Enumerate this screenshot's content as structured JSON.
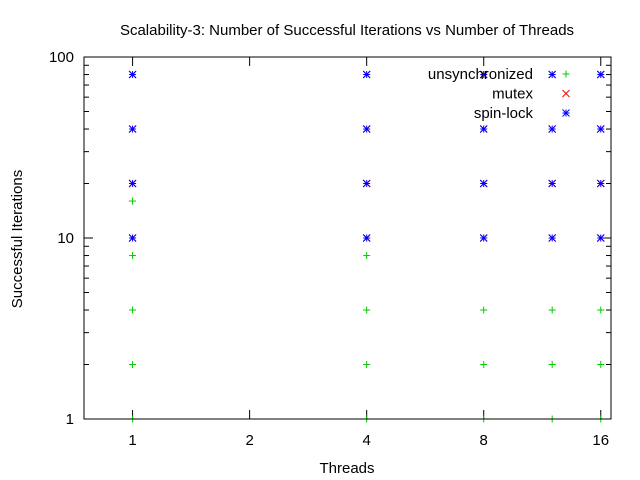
{
  "chart_data": {
    "type": "scatter",
    "title": "Scalability-3: Number of Successful Iterations vs Number of Threads",
    "xlabel": "Threads",
    "ylabel": "Successful Iterations",
    "x_scale": "log2",
    "y_scale": "log10",
    "xlim": [
      0.75,
      17
    ],
    "ylim": [
      1,
      100
    ],
    "x_ticks": [
      {
        "value": 1,
        "label": "1"
      },
      {
        "value": 2,
        "label": "2"
      },
      {
        "value": 4,
        "label": "4"
      },
      {
        "value": 8,
        "label": "8"
      },
      {
        "value": 16,
        "label": "16"
      }
    ],
    "y_ticks": [
      {
        "value": 1,
        "label": "1"
      },
      {
        "value": 10,
        "label": "10"
      },
      {
        "value": 100,
        "label": "100"
      }
    ],
    "grid": false,
    "legend_position": "top-right",
    "series": [
      {
        "name": "unsynchronized",
        "marker": "plus",
        "color": "#00cc00",
        "points": [
          [
            1,
            1
          ],
          [
            1,
            2
          ],
          [
            1,
            4
          ],
          [
            1,
            8
          ],
          [
            1,
            16
          ],
          [
            4,
            1
          ],
          [
            4,
            2
          ],
          [
            4,
            4
          ],
          [
            4,
            8
          ],
          [
            8,
            1
          ],
          [
            8,
            2
          ],
          [
            8,
            4
          ],
          [
            12,
            1
          ],
          [
            12,
            2
          ],
          [
            12,
            4
          ],
          [
            16,
            1
          ],
          [
            16,
            2
          ],
          [
            16,
            4
          ]
        ]
      },
      {
        "name": "mutex",
        "marker": "cross",
        "color": "#ff0000",
        "points": [
          [
            1,
            10
          ],
          [
            1,
            20
          ],
          [
            1,
            40
          ],
          [
            1,
            80
          ],
          [
            4,
            10
          ],
          [
            4,
            20
          ],
          [
            4,
            40
          ],
          [
            4,
            80
          ],
          [
            8,
            10
          ],
          [
            8,
            20
          ],
          [
            8,
            40
          ],
          [
            8,
            80
          ],
          [
            12,
            10
          ],
          [
            12,
            20
          ],
          [
            12,
            40
          ],
          [
            12,
            80
          ],
          [
            16,
            10
          ],
          [
            16,
            20
          ],
          [
            16,
            40
          ],
          [
            16,
            80
          ]
        ]
      },
      {
        "name": "spin-lock",
        "marker": "star",
        "color": "#0000ff",
        "points": [
          [
            1,
            10
          ],
          [
            1,
            20
          ],
          [
            1,
            40
          ],
          [
            1,
            80
          ],
          [
            4,
            10
          ],
          [
            4,
            20
          ],
          [
            4,
            40
          ],
          [
            4,
            80
          ],
          [
            8,
            10
          ],
          [
            8,
            20
          ],
          [
            8,
            40
          ],
          [
            8,
            80
          ],
          [
            12,
            10
          ],
          [
            12,
            20
          ],
          [
            12,
            40
          ],
          [
            12,
            80
          ],
          [
            16,
            10
          ],
          [
            16,
            20
          ],
          [
            16,
            40
          ],
          [
            16,
            80
          ]
        ]
      }
    ]
  }
}
